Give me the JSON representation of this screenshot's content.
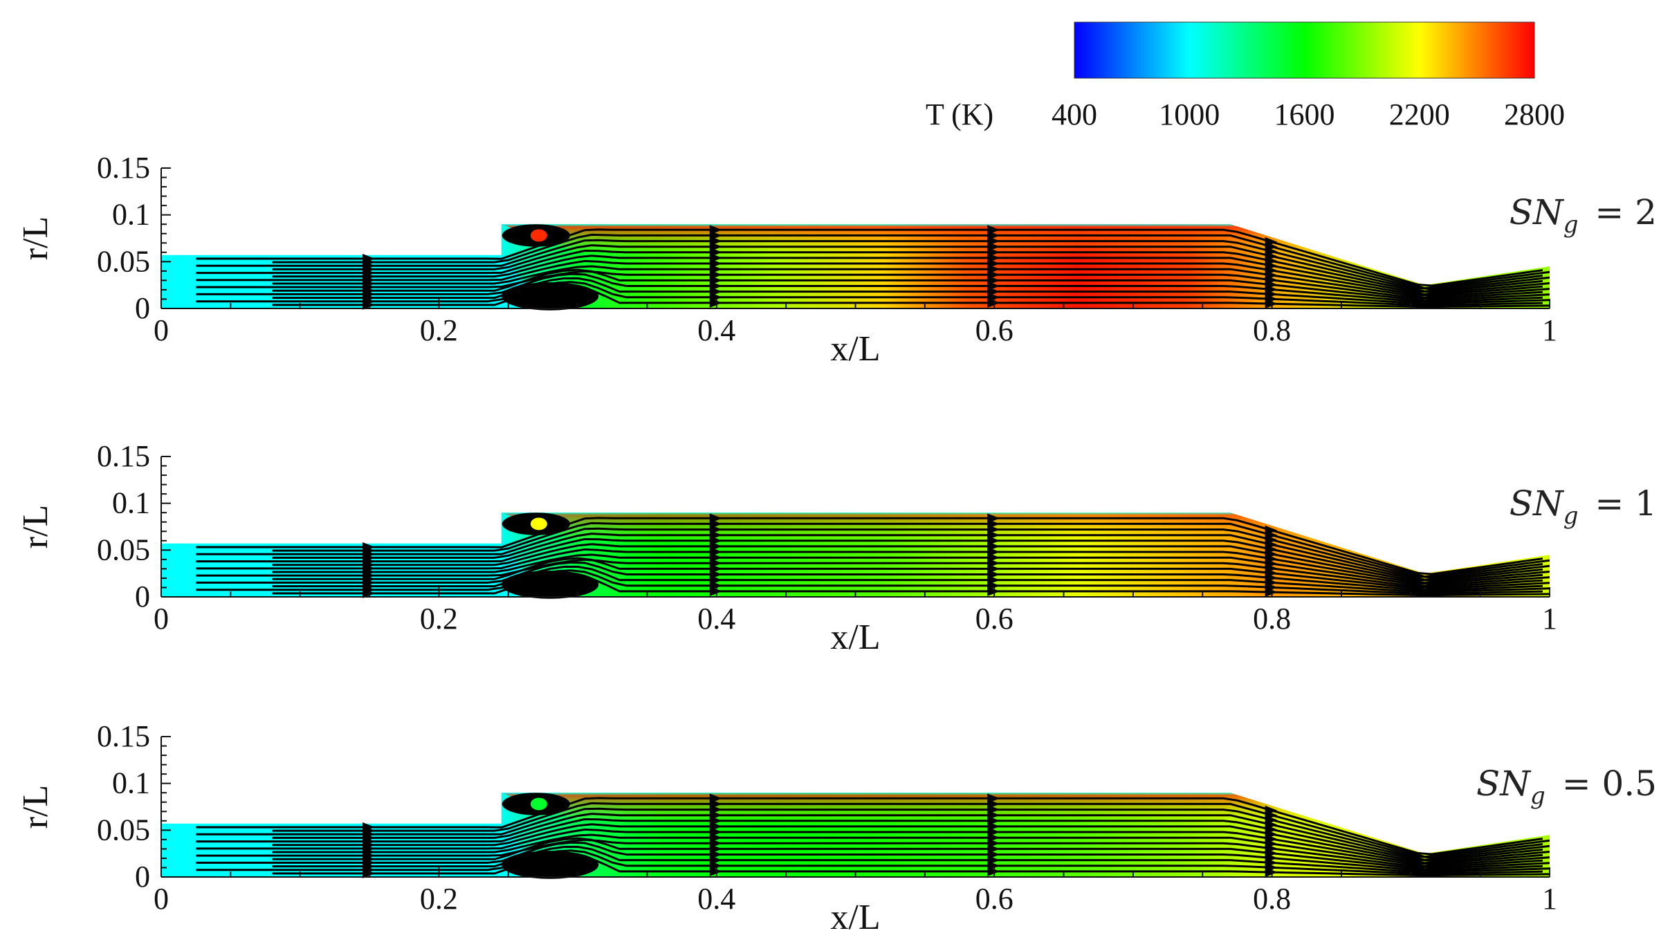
{
  "chart_data": {
    "type": "heatmap",
    "description_fields": "temperature contours with streamlines",
    "colorbar": {
      "label": "T (K)",
      "ticks": [
        400,
        1000,
        1600,
        2200,
        2800
      ],
      "range": [
        400,
        2800
      ],
      "colors": [
        "#0000ff",
        "#00ffff",
        "#00ff00",
        "#ffff00",
        "#ff0000"
      ]
    },
    "panels": [
      {
        "parameter_label": "SN",
        "parameter_subscript": "g",
        "parameter_value": "= 2",
        "sn_g": 2,
        "xlabel": "x/L",
        "ylabel": "r/L",
        "xlim": [
          0,
          1
        ],
        "ylim": [
          0,
          0.15
        ],
        "xticks": [
          "0",
          "0.2",
          "0.4",
          "0.6",
          "0.8",
          "1"
        ],
        "yticks": [
          "0",
          "0.05",
          "0.1",
          "0.15"
        ],
        "temperature_profile": {
          "x": [
            0,
            0.24,
            0.3,
            0.36,
            0.44,
            0.52,
            0.58,
            0.66,
            0.74,
            0.8,
            0.88,
            0.94,
            1.0
          ],
          "T": [
            1000,
            1000,
            1500,
            1750,
            2000,
            2300,
            2600,
            2750,
            2650,
            2400,
            2100,
            2000,
            1950
          ]
        }
      },
      {
        "parameter_label": "SN",
        "parameter_subscript": "g",
        "parameter_value": "= 1",
        "sn_g": 1,
        "xlabel": "x/L",
        "ylabel": "r/L",
        "xlim": [
          0,
          1
        ],
        "ylim": [
          0,
          0.15
        ],
        "xticks": [
          "0",
          "0.2",
          "0.4",
          "0.6",
          "0.8",
          "1"
        ],
        "yticks": [
          "0",
          "0.05",
          "0.1",
          "0.15"
        ],
        "temperature_profile": {
          "x": [
            0,
            0.24,
            0.3,
            0.36,
            0.44,
            0.52,
            0.58,
            0.66,
            0.74,
            0.8,
            0.88,
            0.94,
            1.0
          ],
          "T": [
            1000,
            1000,
            1450,
            1600,
            1700,
            1800,
            1950,
            2150,
            2350,
            2450,
            2350,
            2200,
            2100
          ]
        }
      },
      {
        "parameter_label": "SN",
        "parameter_subscript": "g",
        "parameter_value": "= 0.5",
        "sn_g": 0.5,
        "xlabel": "x/L",
        "ylabel": "r/L",
        "xlim": [
          0,
          1
        ],
        "ylim": [
          0,
          0.15
        ],
        "xticks": [
          "0",
          "0.2",
          "0.4",
          "0.6",
          "0.8",
          "1"
        ],
        "yticks": [
          "0",
          "0.05",
          "0.1",
          "0.15"
        ],
        "temperature_profile": {
          "x": [
            0,
            0.24,
            0.3,
            0.36,
            0.44,
            0.52,
            0.58,
            0.66,
            0.74,
            0.8,
            0.88,
            0.94,
            1.0
          ],
          "T": [
            1000,
            1000,
            1400,
            1550,
            1600,
            1650,
            1700,
            1800,
            1950,
            2100,
            2150,
            2050,
            2000
          ]
        }
      }
    ],
    "geometry": {
      "inlet_wall_r": 0.057,
      "step_x": 0.245,
      "chamber_wall_r": 0.09,
      "converge_start_x": 0.77,
      "throat_x": 0.91,
      "throat_r": 0.025,
      "outlet_r": 0.045
    }
  }
}
